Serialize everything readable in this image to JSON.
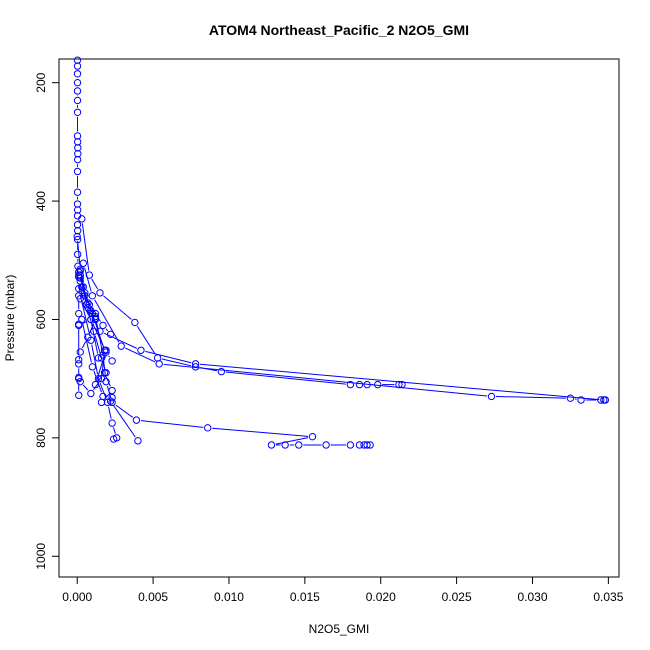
{
  "chart_data": {
    "type": "line",
    "title": "ATOM4 Northeast_Pacific_2 N2O5_GMI",
    "xlabel": "N2O5_GMI",
    "ylabel": "Pressure (mbar)",
    "xlim": [
      -0.0012,
      0.0357
    ],
    "ylim": [
      1035,
      160
    ],
    "y_reversed": true,
    "grid": false,
    "legend": "none",
    "x_ticks": [
      {
        "value": 0.0,
        "label": "0.000"
      },
      {
        "value": 0.005,
        "label": "0.005"
      },
      {
        "value": 0.01,
        "label": "0.010"
      },
      {
        "value": 0.015,
        "label": "0.015"
      },
      {
        "value": 0.02,
        "label": "0.020"
      },
      {
        "value": 0.025,
        "label": "0.025"
      },
      {
        "value": 0.03,
        "label": "0.030"
      },
      {
        "value": 0.035,
        "label": "0.035"
      }
    ],
    "y_ticks": [
      {
        "value": 200,
        "label": "200"
      },
      {
        "value": 400,
        "label": "400"
      },
      {
        "value": 600,
        "label": "600"
      },
      {
        "value": 800,
        "label": "800"
      },
      {
        "value": 1000,
        "label": "1000"
      }
    ],
    "series": [
      {
        "color": "#0000ff",
        "x": [
          2e-05,
          2e-05,
          2e-05,
          2e-05,
          2e-05,
          2e-05,
          2e-05,
          2e-05,
          3e-05,
          4e-05,
          4e-05,
          3e-05,
          2e-05,
          2e-05,
          2e-05,
          3e-05,
          2e-05,
          2e-05,
          3e-05,
          3e-05,
          3e-05,
          5e-05,
          0.0001,
          0.0002,
          0.0003,
          0.0005,
          0.0008,
          0.0012,
          0.0017,
          0.0022
        ],
        "y": [
          162,
          172,
          185,
          200,
          214,
          230,
          250,
          290,
          300,
          310,
          320,
          330,
          350,
          385,
          405,
          415,
          425,
          440,
          450,
          465,
          490,
          510,
          520,
          530,
          545,
          560,
          575,
          590,
          610,
          625
        ]
      },
      {
        "color": "#0000ff",
        "x": [
          0.0003,
          0.0008,
          0.0015,
          0.0038,
          0.0053,
          0.0078,
          0.0095,
          0.018,
          0.0186,
          0.0191,
          0.0198,
          0.0212,
          0.0214
        ],
        "y": [
          430,
          525,
          555,
          605,
          665,
          680,
          688,
          710,
          710,
          710,
          710,
          710,
          710
        ]
      },
      {
        "color": "#0000ff",
        "x": [
          0.0004,
          0.001,
          0.0029,
          0.0054,
          0.0273,
          0.0325,
          0.0332,
          0.0345,
          0.0348
        ],
        "y": [
          505,
          560,
          645,
          675,
          730,
          733,
          736,
          736,
          736
        ]
      },
      {
        "color": "#0000ff",
        "x": [
          0.0002,
          0.0007,
          0.0015,
          0.0042,
          0.0078,
          0.0347
        ],
        "y": [
          518,
          580,
          620,
          652,
          675,
          736
        ]
      },
      {
        "color": "#0000ff",
        "x": [
          0.0006,
          0.0012,
          0.0017,
          0.0019,
          0.0023,
          0.0039,
          0.0086,
          0.0155,
          0.0128,
          0.0137,
          0.0146,
          0.0164,
          0.018,
          0.0186,
          0.0189,
          0.0191,
          0.0193
        ],
        "y": [
          575,
          595,
          660,
          705,
          740,
          770,
          783,
          798,
          812,
          812,
          812,
          812,
          812,
          812,
          812,
          812,
          812
        ]
      },
      {
        "color": "#0000ff",
        "x": [
          0.0001,
          0.0009,
          0.0014,
          0.002,
          0.0023,
          0.0026,
          0.0024
        ],
        "y": [
          548,
          635,
          700,
          740,
          775,
          800,
          802
        ]
      },
      {
        "color": "#0000ff",
        "x": [
          0.0002,
          0.0009,
          0.0014,
          0.0019,
          0.0012,
          0.0018,
          0.0023,
          0.0016,
          0.0022,
          0.004
        ],
        "y": [
          565,
          600,
          665,
          652,
          710,
          690,
          720,
          740,
          738,
          805
        ]
      },
      {
        "color": "#0000ff",
        "x": [
          0.0001,
          0.0004,
          0.0009,
          0.0012,
          0.0007,
          0.0002,
          0.0001,
          0.0001,
          0.0001
        ],
        "y": [
          525,
          545,
          585,
          600,
          630,
          655,
          675,
          700,
          728
        ]
      },
      {
        "color": "#0000ff",
        "x": [
          0.0001,
          0.0002,
          0.0001,
          0.0001,
          0.0001,
          0.0001
        ],
        "y": [
          528,
          535,
          560,
          590,
          608,
          668
        ]
      },
      {
        "color": "#0000ff",
        "x": [
          0.0003,
          0.001,
          0.0017,
          0.0023
        ],
        "y": [
          600,
          680,
          730,
          732
        ]
      },
      {
        "color": "#0000ff",
        "x": [
          0.0002,
          0.0006,
          0.0011,
          0.0016,
          0.0019
        ],
        "y": [
          525,
          575,
          620,
          665,
          690
        ]
      },
      {
        "color": "#0000ff",
        "x": [
          0.001,
          0.0018,
          0.0016,
          0.0009,
          0.0002,
          0.0001
        ],
        "y": [
          590,
          652,
          700,
          725,
          705,
          698
        ]
      },
      {
        "color": "#0000ff",
        "x": [
          0.0001,
          0.0009,
          0.0019,
          0.0023
        ],
        "y": [
          610,
          600,
          655,
          670
        ]
      },
      {
        "color": "#0000ff",
        "x": [
          0.0,
          0.0002,
          0.0005,
          0.0007,
          0.0012
        ],
        "y": [
          460,
          515,
          555,
          572,
          598
        ]
      }
    ]
  }
}
